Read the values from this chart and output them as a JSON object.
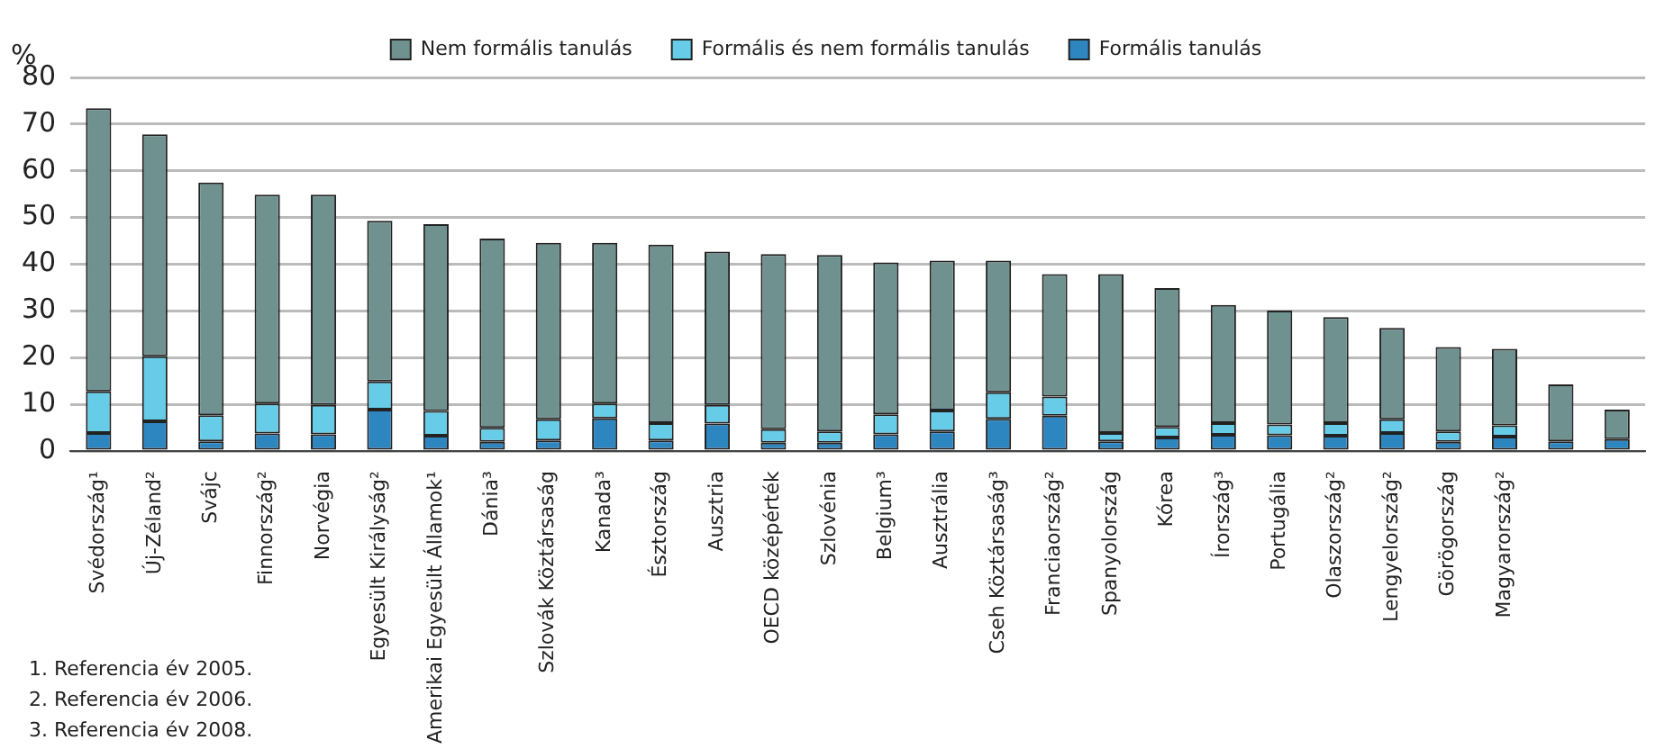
{
  "chart_data": {
    "type": "bar",
    "stacked": true,
    "ylabel": "%",
    "categories": [
      "Svédország¹",
      "Új-Zéland²",
      "Svájc",
      "Finnország²",
      "Norvégia",
      "Egyesült Királyság²",
      "Amerikai Egyesült Államok¹",
      "Dánia³",
      "Szlovák Köztársaság",
      "Kanada³",
      "Észtország",
      "Ausztria",
      "OECD középérték",
      "Szlovénia",
      "Belgium³",
      "Ausztrália",
      "Cseh Köztársaság³",
      "Franciaország²",
      "Spanyolország",
      "Kórea",
      "Írország³",
      "Portugália",
      "Olaszország²",
      "Lengyelország²",
      "Görögország",
      "Magyarország²",
      null,
      null
    ],
    "series": [
      {
        "name": "Formális tanulás",
        "color": "#2e86c1",
        "values": [
          3.9,
          6.4,
          2.1,
          3.8,
          3.6,
          8.9,
          3.3,
          2.0,
          2.3,
          7.0,
          2.3,
          5.9,
          1.8,
          1.8,
          3.6,
          4.2,
          6.9,
          7.6,
          2.1,
          2.9,
          3.5,
          3.4,
          3.3,
          3.9,
          2.0,
          3.1,
          2.1,
          2.6
        ]
      },
      {
        "name": "Formális és nem formális tanulás",
        "color": "#66cce8",
        "values": [
          8.9,
          13.9,
          5.6,
          6.4,
          6.3,
          6.0,
          5.3,
          3.0,
          4.5,
          3.2,
          3.7,
          4.0,
          2.9,
          2.4,
          4.3,
          4.5,
          5.7,
          4.1,
          1.8,
          2.3,
          2.5,
          2.3,
          2.7,
          2.9,
          2.2,
          2.4,
          0,
          0
        ]
      },
      {
        "name": "Nem formális tanulás",
        "color": "#6f9290",
        "values": [
          60.6,
          47.5,
          49.8,
          44.7,
          45.0,
          34.4,
          40.0,
          40.5,
          37.8,
          34.4,
          38.2,
          32.8,
          37.5,
          37.8,
          32.5,
          32.1,
          28.2,
          26.2,
          34.0,
          29.7,
          25.3,
          24.4,
          22.7,
          19.6,
          18.1,
          16.4,
          12.2,
          6.3
        ]
      }
    ],
    "ylim": [
      0,
      80
    ],
    "yticks": [
      0,
      10,
      20,
      30,
      40,
      50,
      60,
      70,
      80
    ],
    "grid": "y",
    "legend": "top",
    "annotations": [
      "1. Referencia év 2005.",
      "2. Referencia év 2006.",
      "3. Referencia év 2008."
    ]
  }
}
